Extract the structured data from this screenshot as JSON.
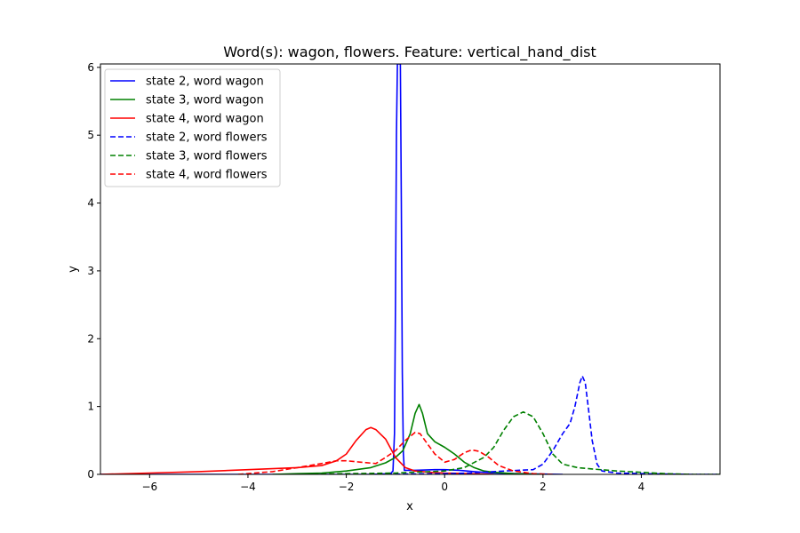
{
  "chart_data": {
    "type": "line",
    "title": "Word(s): wagon, flowers. Feature: vertical_hand_dist",
    "xlabel": "x",
    "ylabel": "y",
    "xlim": [
      -7.0,
      5.6
    ],
    "ylim": [
      0,
      6.05
    ],
    "xticks": [
      -6,
      -4,
      -2,
      0,
      2,
      4
    ],
    "yticks": [
      0,
      1,
      2,
      3,
      4,
      5,
      6
    ],
    "grid": false,
    "legend_position": "top-left",
    "series": [
      {
        "name": "state 2, word wagon",
        "color": "#0000ff",
        "dash": "solid",
        "points": [
          [
            -7.0,
            0.0
          ],
          [
            -3.0,
            0.0
          ],
          [
            -1.5,
            0.0
          ],
          [
            -1.1,
            0.01
          ],
          [
            -1.05,
            0.05
          ],
          [
            -1.02,
            0.6
          ],
          [
            -1.0,
            2.5
          ],
          [
            -0.98,
            5.0
          ],
          [
            -0.96,
            6.05
          ],
          [
            -0.9,
            6.05
          ],
          [
            -0.88,
            4.0
          ],
          [
            -0.86,
            1.5
          ],
          [
            -0.84,
            0.3
          ],
          [
            -0.82,
            0.06
          ],
          [
            -0.6,
            0.06
          ],
          [
            -0.2,
            0.07
          ],
          [
            0.0,
            0.07
          ],
          [
            0.3,
            0.06
          ],
          [
            0.6,
            0.04
          ],
          [
            1.0,
            0.02
          ],
          [
            1.5,
            0.01
          ],
          [
            2.4,
            0.0
          ]
        ]
      },
      {
        "name": "state 3, word wagon",
        "color": "#008000",
        "dash": "solid",
        "points": [
          [
            -3.5,
            0.0
          ],
          [
            -3.0,
            0.01
          ],
          [
            -2.5,
            0.02
          ],
          [
            -2.0,
            0.05
          ],
          [
            -1.5,
            0.1
          ],
          [
            -1.2,
            0.17
          ],
          [
            -1.0,
            0.25
          ],
          [
            -0.85,
            0.35
          ],
          [
            -0.7,
            0.6
          ],
          [
            -0.6,
            0.9
          ],
          [
            -0.52,
            1.03
          ],
          [
            -0.45,
            0.9
          ],
          [
            -0.35,
            0.6
          ],
          [
            -0.2,
            0.48
          ],
          [
            0.0,
            0.4
          ],
          [
            0.2,
            0.3
          ],
          [
            0.4,
            0.18
          ],
          [
            0.6,
            0.1
          ],
          [
            0.8,
            0.05
          ],
          [
            1.0,
            0.03
          ],
          [
            1.4,
            0.01
          ],
          [
            2.0,
            0.0
          ]
        ]
      },
      {
        "name": "state 4, word wagon",
        "color": "#ff0000",
        "dash": "solid",
        "points": [
          [
            -7.0,
            0.0
          ],
          [
            -6.0,
            0.02
          ],
          [
            -5.0,
            0.04
          ],
          [
            -4.0,
            0.07
          ],
          [
            -3.0,
            0.1
          ],
          [
            -2.5,
            0.13
          ],
          [
            -2.2,
            0.2
          ],
          [
            -2.0,
            0.3
          ],
          [
            -1.8,
            0.5
          ],
          [
            -1.6,
            0.66
          ],
          [
            -1.5,
            0.69
          ],
          [
            -1.4,
            0.66
          ],
          [
            -1.2,
            0.52
          ],
          [
            -1.0,
            0.25
          ],
          [
            -0.8,
            0.1
          ],
          [
            -0.6,
            0.05
          ],
          [
            -0.3,
            0.03
          ],
          [
            0.0,
            0.02
          ],
          [
            0.5,
            0.01
          ],
          [
            1.0,
            0.0
          ]
        ]
      },
      {
        "name": "state 2, word flowers",
        "color": "#0000ff",
        "dash": "dashed",
        "points": [
          [
            -1.5,
            0.0
          ],
          [
            0.0,
            0.01
          ],
          [
            0.5,
            0.02
          ],
          [
            1.0,
            0.04
          ],
          [
            1.5,
            0.06
          ],
          [
            1.8,
            0.07
          ],
          [
            2.0,
            0.15
          ],
          [
            2.2,
            0.35
          ],
          [
            2.4,
            0.6
          ],
          [
            2.55,
            0.75
          ],
          [
            2.65,
            1.0
          ],
          [
            2.75,
            1.35
          ],
          [
            2.8,
            1.45
          ],
          [
            2.86,
            1.35
          ],
          [
            2.92,
            1.0
          ],
          [
            3.0,
            0.5
          ],
          [
            3.1,
            0.15
          ],
          [
            3.2,
            0.05
          ],
          [
            3.5,
            0.02
          ],
          [
            4.0,
            0.01
          ],
          [
            5.0,
            0.0
          ],
          [
            5.6,
            0.0
          ]
        ]
      },
      {
        "name": "state 3, word flowers",
        "color": "#008000",
        "dash": "dashed",
        "points": [
          [
            -3.0,
            0.0
          ],
          [
            -2.0,
            0.01
          ],
          [
            -1.0,
            0.02
          ],
          [
            0.0,
            0.05
          ],
          [
            0.4,
            0.1
          ],
          [
            0.8,
            0.25
          ],
          [
            1.0,
            0.4
          ],
          [
            1.2,
            0.65
          ],
          [
            1.4,
            0.85
          ],
          [
            1.6,
            0.92
          ],
          [
            1.8,
            0.85
          ],
          [
            2.0,
            0.6
          ],
          [
            2.2,
            0.3
          ],
          [
            2.4,
            0.15
          ],
          [
            2.7,
            0.1
          ],
          [
            3.0,
            0.08
          ],
          [
            3.5,
            0.05
          ],
          [
            4.0,
            0.03
          ],
          [
            4.5,
            0.01
          ],
          [
            5.0,
            0.0
          ],
          [
            5.6,
            0.0
          ]
        ]
      },
      {
        "name": "state 4, word flowers",
        "color": "#ff0000",
        "dash": "dashed",
        "points": [
          [
            -4.2,
            0.0
          ],
          [
            -3.5,
            0.04
          ],
          [
            -3.0,
            0.1
          ],
          [
            -2.5,
            0.16
          ],
          [
            -2.2,
            0.2
          ],
          [
            -2.0,
            0.2
          ],
          [
            -1.7,
            0.18
          ],
          [
            -1.4,
            0.16
          ],
          [
            -1.2,
            0.25
          ],
          [
            -1.0,
            0.35
          ],
          [
            -0.8,
            0.5
          ],
          [
            -0.6,
            0.62
          ],
          [
            -0.5,
            0.6
          ],
          [
            -0.4,
            0.5
          ],
          [
            -0.2,
            0.3
          ],
          [
            0.0,
            0.18
          ],
          [
            0.2,
            0.22
          ],
          [
            0.4,
            0.32
          ],
          [
            0.55,
            0.36
          ],
          [
            0.7,
            0.34
          ],
          [
            0.9,
            0.25
          ],
          [
            1.1,
            0.13
          ],
          [
            1.4,
            0.05
          ],
          [
            1.8,
            0.01
          ],
          [
            2.2,
            0.0
          ]
        ]
      }
    ]
  }
}
